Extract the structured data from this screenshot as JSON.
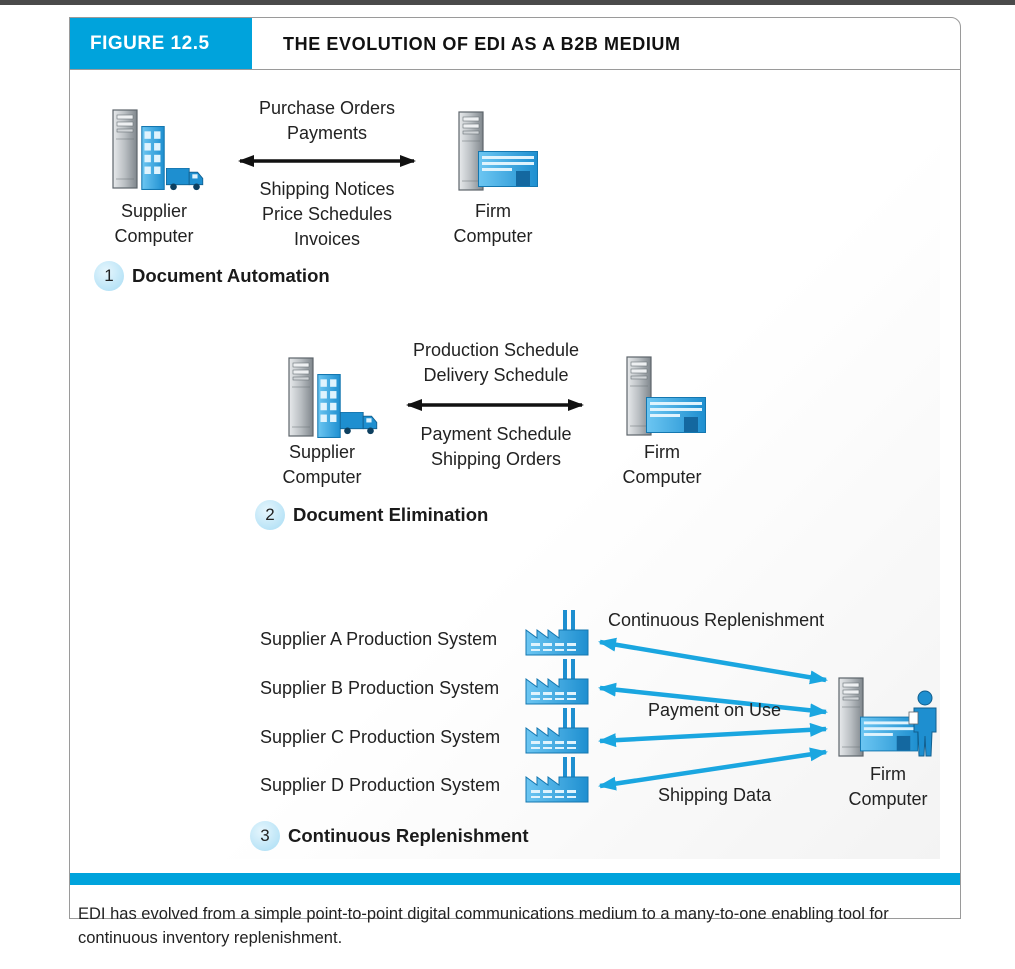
{
  "figure": {
    "label": "FIGURE 12.5",
    "title": "THE EVOLUTION OF EDI AS A B2B MEDIUM",
    "caption": "EDI has evolved from a simple point-to-point digital communications medium to a many-to-one enabling tool for continuous inventory replenishment."
  },
  "stage1": {
    "number": "1",
    "title": "Document Automation",
    "supplier_line1": "Supplier",
    "supplier_line2": "Computer",
    "firm_line1": "Firm",
    "firm_line2": "Computer",
    "above_arrow": [
      "Purchase Orders",
      "Payments"
    ],
    "below_arrow": [
      "Shipping Notices",
      "Price Schedules",
      "Invoices"
    ]
  },
  "stage2": {
    "number": "2",
    "title": "Document Elimination",
    "supplier_line1": "Supplier",
    "supplier_line2": "Computer",
    "firm_line1": "Firm",
    "firm_line2": "Computer",
    "above_arrow": [
      "Production Schedule",
      "Delivery Schedule"
    ],
    "below_arrow": [
      "Payment Schedule",
      "Shipping Orders"
    ]
  },
  "stage3": {
    "number": "3",
    "title": "Continuous Replenishment",
    "suppliers": [
      "Supplier A Production System",
      "Supplier B Production System",
      "Supplier C Production System",
      "Supplier D Production System"
    ],
    "flow_labels": [
      "Continuous Replenishment",
      "Payment on Use",
      "Shipping Data"
    ],
    "firm_line1": "Firm",
    "firm_line2": "Computer"
  },
  "colors": {
    "accent": "#00a3dc",
    "arrow_blue": "#1aa6e0",
    "arrow_black": "#111111",
    "server_gray": "#a8aeb3",
    "building_blue": "#2a9fe0"
  },
  "icons": [
    "server-icon",
    "office-building-icon",
    "delivery-truck-icon",
    "factory-icon",
    "person-icon"
  ]
}
